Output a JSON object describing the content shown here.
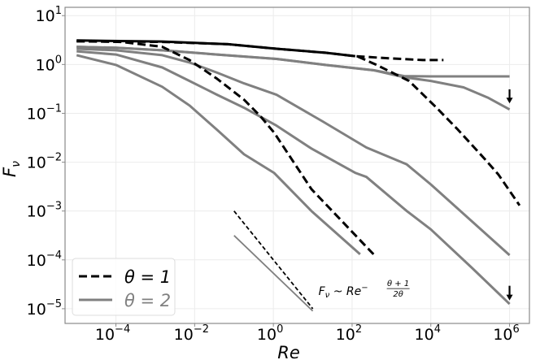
{
  "chart_data": {
    "type": "line",
    "xlabel": "Re",
    "ylabel": "F",
    "ylabel_sub": "ν",
    "xscale": "log",
    "yscale": "log",
    "xlim": [
      5.1e-06,
      3200000.0
    ],
    "ylim": [
      5e-06,
      14.8
    ],
    "grid": true,
    "legend_placement": "lower-left",
    "colors": {
      "theta1": "#000000",
      "theta2": "#808080",
      "grid": "#ececec"
    },
    "xticks": [
      {
        "value": 0.0001,
        "base": "10",
        "exp": "−4"
      },
      {
        "value": 0.01,
        "base": "10",
        "exp": "−2"
      },
      {
        "value": 1,
        "base": "10",
        "exp": "0"
      },
      {
        "value": 100.0,
        "base": "10",
        "exp": "2"
      },
      {
        "value": 10000.0,
        "base": "10",
        "exp": "4"
      },
      {
        "value": 1000000.0,
        "base": "10",
        "exp": "6"
      }
    ],
    "yticks": [
      {
        "value": 10.0,
        "base": "10",
        "exp": "1"
      },
      {
        "value": 1,
        "base": "10",
        "exp": "0"
      },
      {
        "value": 0.1,
        "base": "10",
        "exp": "−1"
      },
      {
        "value": 0.01,
        "base": "10",
        "exp": "−2"
      },
      {
        "value": 0.001,
        "base": "10",
        "exp": "−3"
      },
      {
        "value": 0.0001,
        "base": "10",
        "exp": "−4"
      },
      {
        "value": 1e-05,
        "base": "10",
        "exp": "−5"
      }
    ],
    "legend": [
      {
        "label": "θ = 1",
        "style": "dashed",
        "color": "#000000"
      },
      {
        "label": "θ = 2",
        "style": "solid",
        "color": "#808080"
      }
    ],
    "series": [
      {
        "group": "θ = 1",
        "style": "solid",
        "color": "#000000",
        "points": [
          [
            1e-05,
            3.1
          ],
          [
            0.0015,
            2.95
          ],
          [
            0.07,
            2.6
          ],
          [
            1.2,
            2.1
          ],
          [
            21,
            1.74
          ],
          [
            120,
            1.48
          ]
        ]
      },
      {
        "group": "θ = 1",
        "style": "dashed",
        "color": "#000000",
        "points": [
          [
            1e-05,
            3.0
          ],
          [
            0.0015,
            2.9
          ],
          [
            0.07,
            2.6
          ],
          [
            1.2,
            2.1
          ],
          [
            21,
            1.74
          ],
          [
            120,
            1.48
          ],
          [
            950,
            1.33
          ],
          [
            6300,
            1.23
          ],
          [
            21000.0,
            1.23
          ]
        ]
      },
      {
        "group": "θ = 1",
        "style": "dashed",
        "color": "#000000",
        "points": [
          [
            140,
            1.45
          ],
          [
            420,
            0.98
          ],
          [
            2800,
            0.46
          ],
          [
            14000.0,
            0.13
          ],
          [
            49000.0,
            0.046
          ],
          [
            250000.0,
            0.011
          ],
          [
            520000.0,
            0.0056
          ],
          [
            1800000.0,
            0.0013
          ]
        ]
      },
      {
        "group": "θ = 1",
        "style": "dashed",
        "color": "#000000",
        "points": [
          [
            1e-05,
            3.0
          ],
          [
            0.00014,
            2.9
          ],
          [
            0.0015,
            2.3
          ],
          [
            0.0074,
            1.23
          ],
          [
            0.037,
            0.51
          ],
          [
            0.18,
            0.19
          ],
          [
            0.47,
            0.087
          ],
          [
            1.05,
            0.04
          ],
          [
            9.3,
            0.0028
          ],
          [
            350,
            0.00013
          ]
        ]
      },
      {
        "group": "θ = 2",
        "style": "solid",
        "color": "#808080",
        "points": [
          [
            1e-05,
            2.3
          ],
          [
            0.0001,
            2.2
          ],
          [
            0.0015,
            1.95
          ],
          [
            0.037,
            1.6
          ],
          [
            1.2,
            1.3
          ],
          [
            21,
            0.98
          ],
          [
            360,
            0.76
          ],
          [
            2100,
            0.58
          ],
          [
            10000.0,
            0.57
          ],
          [
            1000000.0,
            0.57
          ]
        ]
      },
      {
        "group": "θ = 2",
        "style": "solid",
        "color": "#808080",
        "points": [
          [
            1e-05,
            2.3
          ],
          [
            0.0001,
            2.2
          ],
          [
            0.0015,
            1.95
          ],
          [
            0.037,
            1.6
          ],
          [
            1.2,
            1.3
          ],
          [
            21,
            0.98
          ],
          [
            360,
            0.76
          ],
          [
            2100,
            0.55
          ],
          [
            10000.0,
            0.46
          ],
          [
            68000.0,
            0.34
          ],
          [
            280000.0,
            0.21
          ],
          [
            1000000.0,
            0.12
          ]
        ]
      },
      {
        "group": "θ = 2",
        "style": "solid",
        "color": "#808080",
        "points": [
          [
            1e-05,
            2.1
          ],
          [
            0.0001,
            1.95
          ],
          [
            0.0015,
            1.55
          ],
          [
            0.0074,
            1.1
          ],
          [
            0.037,
            0.68
          ],
          [
            0.18,
            0.41
          ],
          [
            1.2,
            0.24
          ],
          [
            18,
            0.068
          ],
          [
            230,
            0.02
          ],
          [
            2450,
            0.009
          ],
          [
            10000.0,
            0.0035
          ],
          [
            1000000.0,
            0.000125
          ]
        ]
      },
      {
        "group": "θ = 2",
        "style": "solid",
        "color": "#808080",
        "points": [
          [
            1e-05,
            1.86
          ],
          [
            0.0001,
            1.6
          ],
          [
            0.0015,
            0.87
          ],
          [
            0.0074,
            0.46
          ],
          [
            0.037,
            0.24
          ],
          [
            0.18,
            0.13
          ],
          [
            1.2,
            0.056
          ],
          [
            9.3,
            0.019
          ],
          [
            123,
            0.006
          ],
          [
            230,
            0.005
          ],
          [
            2450,
            0.001
          ],
          [
            10000.0,
            0.00042
          ],
          [
            110000.0,
            6.9e-05
          ],
          [
            1000000.0,
            1.25e-05
          ]
        ]
      },
      {
        "group": "θ = 2",
        "style": "solid",
        "color": "#808080",
        "points": [
          [
            1e-05,
            1.55
          ],
          [
            0.0001,
            0.98
          ],
          [
            0.0015,
            0.35
          ],
          [
            0.0074,
            0.145
          ],
          [
            0.037,
            0.046
          ],
          [
            0.18,
            0.0145
          ],
          [
            1.05,
            0.006
          ],
          [
            9.3,
            0.001
          ],
          [
            160,
            0.00013
          ]
        ]
      }
    ],
    "reference_lines": [
      {
        "style": "dashed",
        "color": "#000000",
        "points": [
          [
            0.1,
            0.001
          ],
          [
            10,
            1e-05
          ]
        ]
      },
      {
        "style": "solid",
        "color": "#808080",
        "points": [
          [
            0.1,
            0.000316
          ],
          [
            10,
            9e-06
          ]
        ]
      }
    ],
    "arrows": [
      {
        "x": 1000000.0,
        "y_from": 0.31,
        "y_to": 0.16,
        "direction": "down"
      },
      {
        "x": 1000000.0,
        "y_from": 2.95e-05,
        "y_to": 1.48e-05,
        "direction": "down"
      }
    ],
    "annotation": {
      "x": 14,
      "y": 1.4e-05,
      "lhs": "F",
      "lhs_sub": "ν",
      "mid": " ~ Re",
      "sign": "−",
      "numerator": "θ + 1",
      "denominator": "2θ"
    }
  }
}
